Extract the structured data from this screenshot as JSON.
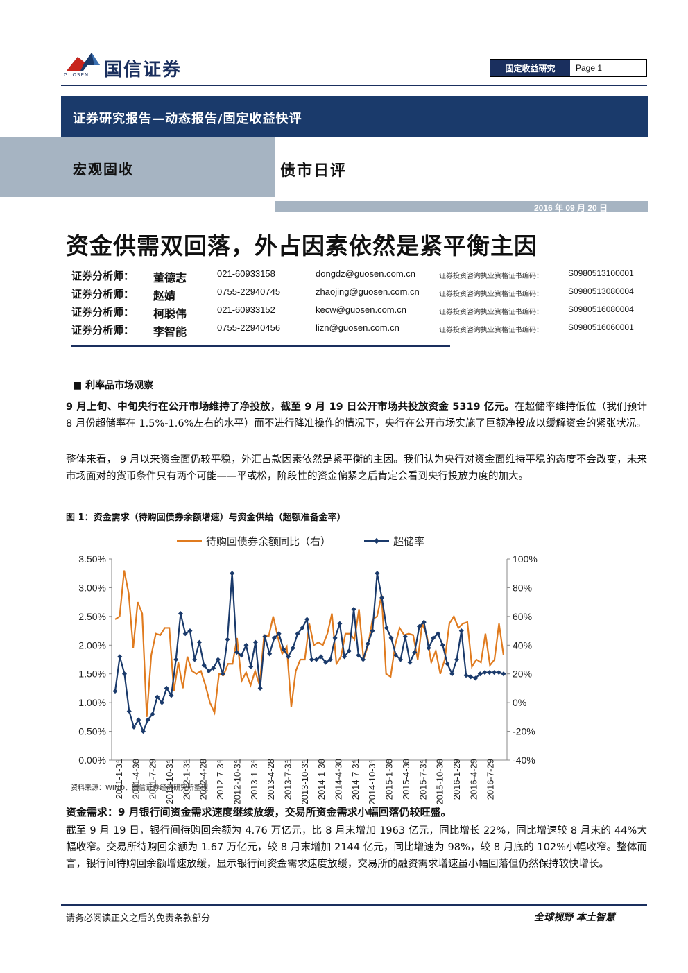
{
  "header": {
    "logo_name": "国信证券",
    "logo_sub": "GUOSEN",
    "section_label": "固定收益研究",
    "page_label": "Page 1",
    "band_title": "证券研究报告—动态报告/固定收益快评",
    "category": "宏观固收",
    "report_type": "债市日评",
    "date": "2016 年 09 月 20 日"
  },
  "title": "资金供需双回落，外占因素依然是紧平衡主因",
  "analysts": [
    {
      "role": "证券分析师：",
      "name": "董德志",
      "phone": "021-60933158",
      "email": "dongdz@guosen.com.cn",
      "cert_label": "证券投资咨询执业资格证书编码：",
      "cert_no": "S0980513100001"
    },
    {
      "role": "证券分析师：",
      "name": "赵婧",
      "phone": "0755-22940745",
      "email": "zhaojing@guosen.com.cn",
      "cert_label": "证券投资咨询执业资格证书编码：",
      "cert_no": "S0980513080004"
    },
    {
      "role": "证券分析师：",
      "name": "柯聪伟",
      "phone": "021-60933152",
      "email": "kecw@guosen.com.cn",
      "cert_label": "证券投资咨询执业资格证书编码：",
      "cert_no": "S0980516080004"
    },
    {
      "role": "证券分析师：",
      "name": "李智能",
      "phone": "0755-22940456",
      "email": "lizn@guosen.com.cn",
      "cert_label": "证券投资咨询执业资格证书编码：",
      "cert_no": "S0980516060001"
    }
  ],
  "body": {
    "section1": "■     利率品市场观察",
    "p1_bold": "9 月上旬、中旬央行在公开市场维持了净投放，截至 9 月 19 日公开市场共投放资金 5319 亿元。",
    "p1_rest": "在超储率维持低位（我们预计 8 月份超储率在 1.5%-1.6%左右的水平）而不进行降准操作的情况下，央行在公开市场实施了巨额净投放以缓解资金的紧张状况。",
    "p2": "整体来看， 9 月以来资金面仍较平稳，外汇占款因素依然是紧平衡的主因。我们认为央行对资金面维持平稳的态度不会改变，未来市场面对的货币条件只有两个可能——平或松，阶段性的资金偏紧之后肯定会看到央行投放力度的加大。",
    "figure_title": "图 1：资金需求（待购回债券余额增速）与资金供给（超额准备金率）",
    "source": "资料来源：WIND、国信证券经济研究所整理",
    "p3_bold": "资金需求：9 月银行间资金需求速度继续放缓，交易所资金需求小幅回落仍较旺盛。",
    "p3": "截至 9 月 19 日，银行间待购回余额为 4.76 万亿元，比 8 月末增加 1963 亿元，同比增长 22%，同比增速较 8 月末的 44%大幅收窄。交易所待购回余额为 1.67 万亿元，较 8 月末增加 2144 亿元，同比增速为 98%，较 8 月底的 102%小幅收窄。整体而言，银行间待购回余额增速放缓，显示银行间资金需求速度放缓，交易所的融资需求增速虽小幅回落但仍然保持较快增长。"
  },
  "footer": {
    "left": "请务必阅读正文之后的免责条款部分",
    "right": "全球视野  本土智慧"
  },
  "chart_data": {
    "type": "line",
    "legend": [
      "待购回债券余额同比（右）",
      "超储率"
    ],
    "legend_position": "top",
    "x_ticks": [
      "2011-1-31",
      "2011-4-30",
      "2011-7-29",
      "2011-10-31",
      "2012-1-31",
      "2012-4-28",
      "2012-7-31",
      "2012-10-31",
      "2013-1-31",
      "2013-4-28",
      "2013-7-31",
      "2013-10-31",
      "2014-1-30",
      "2014-4-30",
      "2014-7-31",
      "2014-10-31",
      "2015-1-30",
      "2015-4-30",
      "2015-7-31",
      "2015-10-30",
      "2016-1-29",
      "2016-4-29",
      "2016-7-29"
    ],
    "left_axis": {
      "ticks": [
        "0.00%",
        "0.50%",
        "1.00%",
        "1.50%",
        "2.00%",
        "2.50%",
        "3.00%",
        "3.50%"
      ],
      "range": [
        0,
        3.5
      ]
    },
    "right_axis": {
      "ticks": [
        "-40%",
        "-20%",
        "0%",
        "20%",
        "40%",
        "60%",
        "80%",
        "100%"
      ],
      "range": [
        -40,
        100
      ]
    },
    "series": [
      {
        "name": "待购回债券余额同比（右）",
        "color": "#e07b1f",
        "axis": "right",
        "values": [
          58,
          60,
          92,
          76,
          38,
          70,
          62,
          -10,
          33,
          48,
          47,
          52,
          52,
          8,
          28,
          10,
          32,
          22,
          20,
          22,
          12,
          0,
          -7,
          20,
          19,
          27,
          27,
          45,
          15,
          21,
          12,
          22,
          12,
          47,
          46,
          60,
          46,
          34,
          39,
          -3,
          22,
          30,
          30,
          55,
          40,
          42,
          40,
          48,
          62,
          27,
          32,
          48,
          48,
          44,
          65,
          30,
          40,
          58,
          60,
          75,
          20,
          18,
          40,
          52,
          47,
          48,
          47,
          30,
          55,
          47,
          28,
          36,
          20,
          30,
          55,
          60,
          52,
          55,
          56,
          25,
          30,
          28,
          48,
          26,
          30,
          55,
          33
        ]
      },
      {
        "name": "超储率",
        "color": "#1a3a6b",
        "axis": "right",
        "values": [
          8,
          32,
          20,
          -6,
          -17,
          -12,
          -20,
          -12,
          -8,
          4,
          0,
          10,
          5,
          30,
          62,
          48,
          50,
          30,
          42,
          26,
          22,
          24,
          30,
          20,
          44,
          90,
          35,
          33,
          40,
          25,
          42,
          10,
          46,
          34,
          45,
          48,
          37,
          32,
          38,
          48,
          52,
          58,
          30,
          30,
          32,
          28,
          30,
          45,
          55,
          32,
          36,
          65,
          33,
          30,
          41,
          50,
          90,
          73,
          52,
          45,
          33,
          30,
          46,
          28,
          35,
          53,
          56,
          38,
          45,
          48,
          40,
          27,
          20,
          30,
          50,
          19,
          18,
          17,
          20,
          21,
          21,
          21,
          21,
          20
        ]
      }
    ]
  }
}
